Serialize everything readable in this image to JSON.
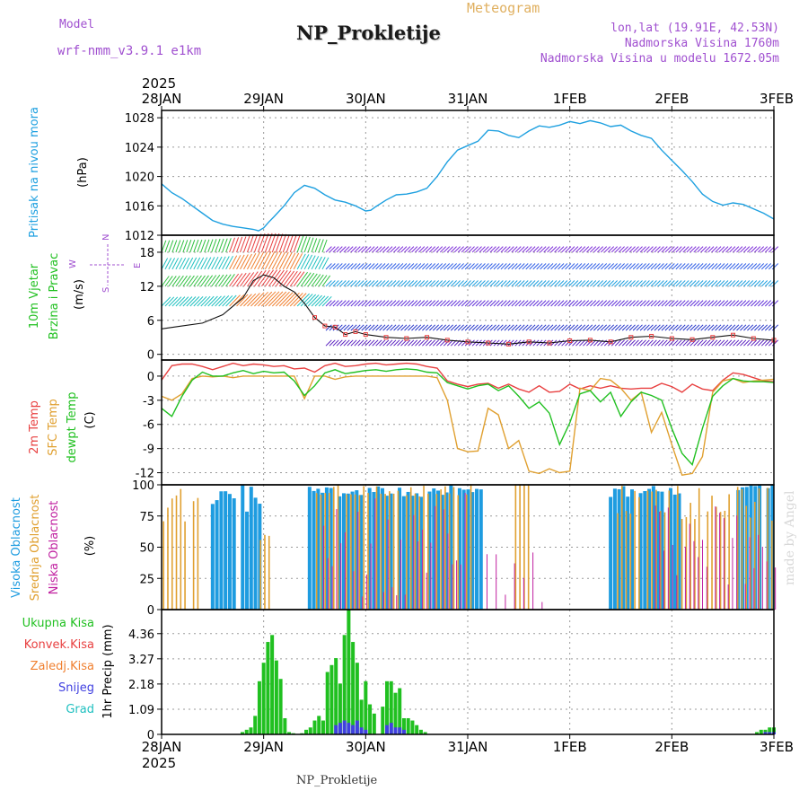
{
  "header": {
    "model_label": "Model",
    "model_name": "wrf-nmm_v3.9.1 e1km",
    "location": "NP_Prokletije",
    "meteogram_label": "Meteogram",
    "coords": "lon,lat (19.91E, 42.53N)",
    "altitude": "Nadmorska Visina 1760m",
    "model_altitude": "Nadmorska Visina u modelu 1672.05m",
    "footer_name": "NP_Prokletije",
    "credit": "made by Angel"
  },
  "colors": {
    "pressure": "#1ea0e0",
    "temp2m": "#e84040",
    "sfc_temp": "#e0a030",
    "dewpoint": "#20c020",
    "high_cloud": "#1e9ce0",
    "mid_cloud": "#e0a030",
    "low_cloud": "#c020a0",
    "total_precip": "#20c020",
    "conv_precip": "#e84040",
    "frozen": "#f08030",
    "snow": "#4040e0",
    "hail": "#20c0c0"
  },
  "chart_data": [
    {
      "type": "line",
      "panel": "pressure",
      "ylabel_side": "Pritisak na nivou mora",
      "unit": "(hPa)",
      "x_axis": {
        "start": "2025-01-28",
        "year_label": "2025",
        "ticks": [
          "28JAN",
          "29JAN",
          "30JAN",
          "31JAN",
          "1FEB",
          "2FEB",
          "3FEB"
        ]
      },
      "ylim": [
        1012,
        1029
      ],
      "yticks": [
        1012,
        1016,
        1020,
        1024,
        1028
      ],
      "grid": true,
      "series": [
        {
          "name": "Pritisak na nivou mora",
          "x_days": [
            0,
            0.1,
            0.2,
            0.3,
            0.4,
            0.5,
            0.6,
            0.7,
            0.8,
            0.9,
            0.95,
            1.0,
            1.05,
            1.1,
            1.2,
            1.3,
            1.4,
            1.5,
            1.6,
            1.7,
            1.8,
            1.9,
            2.0,
            2.05,
            2.1,
            2.2,
            2.3,
            2.4,
            2.5,
            2.6,
            2.7,
            2.8,
            2.9,
            3.0,
            3.1,
            3.2,
            3.3,
            3.4,
            3.5,
            3.6,
            3.7,
            3.8,
            3.9,
            4.0,
            4.1,
            4.2,
            4.3,
            4.4,
            4.5,
            4.6,
            4.7,
            4.8,
            4.9,
            5.0,
            5.1,
            5.2,
            5.3,
            5.4,
            5.5,
            5.6,
            5.7,
            5.8,
            5.9,
            6.0
          ],
          "values": [
            1019,
            1017.8,
            1017,
            1016,
            1015,
            1014,
            1013.5,
            1013.2,
            1013,
            1012.8,
            1012.6,
            1013,
            1013.8,
            1014.5,
            1016,
            1017.8,
            1018.8,
            1018.4,
            1017.5,
            1016.8,
            1016.5,
            1016,
            1015.3,
            1015.4,
            1015.9,
            1016.8,
            1017.5,
            1017.6,
            1017.9,
            1018.4,
            1020,
            1022,
            1023.6,
            1024.2,
            1024.8,
            1026.3,
            1026.2,
            1025.6,
            1025.3,
            1026.2,
            1026.9,
            1026.7,
            1027,
            1027.5,
            1027.2,
            1027.6,
            1027.3,
            1026.8,
            1027,
            1026.2,
            1025.6,
            1025.2,
            1023.6,
            1022.2,
            1020.8,
            1019.3,
            1017.6,
            1016.6,
            1016.1,
            1016.4,
            1016.2,
            1015.6,
            1015,
            1014.2
          ]
        }
      ]
    },
    {
      "type": "scatter",
      "panel": "wind",
      "ylabel_side": [
        "10m Vjetar",
        "Brzina i Pravac"
      ],
      "unit": "(m/s)",
      "direction_legend": [
        "N",
        "W",
        "E",
        "S"
      ],
      "ylim": [
        -1,
        21
      ],
      "yticks": [
        0,
        6,
        12,
        18
      ],
      "grid": true,
      "series": [
        {
          "name": "speed",
          "x_days": [
            0,
            0.2,
            0.4,
            0.6,
            0.8,
            0.9,
            1.0,
            1.1,
            1.2,
            1.3,
            1.4,
            1.5,
            1.6,
            1.7,
            1.8,
            1.9,
            2.0,
            2.2,
            2.4,
            2.6,
            2.8,
            3.0,
            3.2,
            3.4,
            3.6,
            3.8,
            4.0,
            4.2,
            4.4,
            4.6,
            4.8,
            5.0,
            5.2,
            5.4,
            5.6,
            5.8,
            6.0
          ],
          "values": [
            4.5,
            5,
            5.5,
            7,
            10,
            13,
            14,
            13.5,
            12,
            11,
            9,
            6.5,
            5,
            4.8,
            3.5,
            4,
            3.5,
            3,
            2.8,
            3,
            2.5,
            2.2,
            2,
            1.8,
            2.2,
            2,
            2.4,
            2.5,
            2.2,
            3,
            3.2,
            2.8,
            2.6,
            3,
            3.4,
            2.8,
            2.5
          ]
        }
      ],
      "barb_levels": [
        {
          "speed_range": "0-12 m/s",
          "direction": "mostly W/SW"
        },
        {
          "speed_range": "12-21 m/s",
          "direction": "mostly SW/W"
        }
      ]
    },
    {
      "type": "line",
      "panel": "temperature",
      "ylabel_side": [
        "2m Temp",
        "SFC Temp",
        "dewpt Temp"
      ],
      "unit": "(C)",
      "ylim": [
        -13.5,
        2
      ],
      "yticks": [
        0,
        -3,
        -6,
        -9,
        -12
      ],
      "grid": true,
      "series": [
        {
          "name": "2m Temp",
          "x_days": [
            0,
            0.1,
            0.2,
            0.3,
            0.4,
            0.5,
            0.6,
            0.7,
            0.8,
            0.9,
            1.0,
            1.1,
            1.2,
            1.3,
            1.4,
            1.5,
            1.6,
            1.7,
            1.8,
            1.9,
            2.0,
            2.1,
            2.2,
            2.3,
            2.4,
            2.5,
            2.6,
            2.7,
            2.8,
            2.9,
            3.0,
            3.1,
            3.2,
            3.3,
            3.4,
            3.5,
            3.6,
            3.7,
            3.8,
            3.9,
            4.0,
            4.1,
            4.2,
            4.3,
            4.4,
            4.5,
            4.6,
            4.7,
            4.8,
            4.9,
            5.0,
            5.1,
            5.2,
            5.3,
            5.4,
            5.5,
            5.6,
            5.7,
            5.8,
            5.9,
            6.0
          ],
          "values": [
            -0.5,
            1.3,
            1.5,
            1.5,
            1.2,
            0.8,
            1.2,
            1.6,
            1.3,
            1.5,
            1.4,
            1.2,
            1.3,
            0.9,
            1.0,
            0.5,
            1.3,
            1.6,
            1.2,
            1.3,
            1.5,
            1.6,
            1.4,
            1.5,
            1.6,
            1.5,
            1.2,
            1.0,
            -0.6,
            -1.0,
            -1.3,
            -1.0,
            -0.9,
            -1.5,
            -1.0,
            -1.6,
            -2.0,
            -1.2,
            -2.0,
            -1.9,
            -1.0,
            -1.6,
            -1.2,
            -1.5,
            -1.2,
            -1.5,
            -1.6,
            -1.5,
            -1.5,
            -0.9,
            -1.3,
            -2.0,
            -1.0,
            -1.6,
            -1.8,
            -0.5,
            0.4,
            0.2,
            -0.2,
            -0.6,
            -0.7
          ]
        },
        {
          "name": "SFC Temp",
          "x_days": [
            0,
            0.1,
            0.2,
            0.3,
            0.4,
            0.5,
            0.6,
            0.7,
            0.8,
            0.9,
            1.0,
            1.1,
            1.2,
            1.3,
            1.4,
            1.5,
            1.6,
            1.7,
            1.8,
            1.9,
            2.0,
            2.1,
            2.2,
            2.3,
            2.4,
            2.5,
            2.6,
            2.7,
            2.8,
            2.9,
            3.0,
            3.1,
            3.2,
            3.3,
            3.4,
            3.5,
            3.6,
            3.7,
            3.8,
            3.9,
            4.0,
            4.1,
            4.2,
            4.3,
            4.4,
            4.5,
            4.6,
            4.7,
            4.8,
            4.9,
            5.0,
            5.1,
            5.2,
            5.3,
            5.4,
            5.5,
            5.6,
            5.7,
            5.8,
            5.9,
            6.0
          ],
          "values": [
            -2.5,
            -3,
            -2.2,
            -0.3,
            0,
            -0.1,
            0,
            -0.2,
            0,
            0,
            0,
            0,
            0,
            0,
            -2.8,
            0,
            0,
            -0.4,
            -0.1,
            0,
            0,
            0,
            0,
            0,
            0,
            0,
            0,
            -0.2,
            -3,
            -9,
            -9.4,
            -9.3,
            -4,
            -4.8,
            -9,
            -8,
            -11.8,
            -12.1,
            -11.5,
            -12,
            -11.8,
            -1.5,
            -1.8,
            -0.3,
            -0.5,
            -1.5,
            -3,
            -2,
            -7,
            -4.5,
            -8.5,
            -12.3,
            -12.1,
            -10,
            -2,
            -0.6,
            -0.3,
            -0.8,
            -0.6,
            -0.5,
            -0.4
          ]
        },
        {
          "name": "dewpt Temp",
          "x_days": [
            0,
            0.1,
            0.2,
            0.3,
            0.4,
            0.5,
            0.6,
            0.7,
            0.8,
            0.9,
            1.0,
            1.1,
            1.2,
            1.3,
            1.4,
            1.5,
            1.6,
            1.7,
            1.8,
            1.9,
            2.0,
            2.1,
            2.2,
            2.3,
            2.4,
            2.5,
            2.6,
            2.7,
            2.8,
            2.9,
            3.0,
            3.1,
            3.2,
            3.3,
            3.4,
            3.5,
            3.6,
            3.7,
            3.8,
            3.9,
            4.0,
            4.1,
            4.2,
            4.3,
            4.4,
            4.5,
            4.6,
            4.7,
            4.8,
            4.9,
            5.0,
            5.1,
            5.2,
            5.3,
            5.4,
            5.5,
            5.6,
            5.7,
            5.8,
            5.9,
            6.0
          ],
          "values": [
            -4,
            -5,
            -2.5,
            -0.5,
            0.5,
            0,
            0,
            0.4,
            0.7,
            0.3,
            0.6,
            0.4,
            0.5,
            -0.6,
            -2.4,
            -1.2,
            0.4,
            0.8,
            0.3,
            0.5,
            0.7,
            0.8,
            0.6,
            0.8,
            0.9,
            0.8,
            0.5,
            0.4,
            -0.8,
            -1.2,
            -1.6,
            -1.2,
            -1.0,
            -1.8,
            -1.2,
            -2.5,
            -4.0,
            -3.2,
            -4.6,
            -8.5,
            -5.8,
            -2.2,
            -1.8,
            -3.2,
            -2.0,
            -5.0,
            -3.2,
            -2.0,
            -2.4,
            -3.0,
            -6.5,
            -9.6,
            -11.0,
            -6.5,
            -2.5,
            -1.2,
            -0.3,
            -0.6,
            -0.7,
            -0.7,
            -0.8
          ]
        }
      ]
    },
    {
      "type": "bar",
      "panel": "clouds",
      "ylabel_side": [
        "Visoka Oblacnost",
        "Srednja Oblacnost",
        "Niska Oblacnost"
      ],
      "unit": "(%)",
      "ylim": [
        0,
        100
      ],
      "yticks": [
        0,
        25,
        50,
        75,
        100
      ],
      "grid": true,
      "series": [
        {
          "name": "Visoka Oblacnost",
          "segments": [
            {
              "from_day": 0.5,
              "to_day": 1.0,
              "level": "78-100 intermittent"
            },
            {
              "from_day": 1.45,
              "to_day": 3.2,
              "level": "90-100 intermittent"
            },
            {
              "from_day": 4.4,
              "to_day": 5.1,
              "level": "90-100 intermittent"
            },
            {
              "from_day": 5.65,
              "to_day": 6.0,
              "level": "95-100 intermittent"
            }
          ]
        },
        {
          "name": "Srednja Oblacnost",
          "segments": [
            {
              "from_day": 0.0,
              "to_day": 0.35,
              "level": "65-100 intermittent"
            },
            {
              "from_day": 0.95,
              "to_day": 1.05,
              "level": "55-60"
            },
            {
              "from_day": 1.5,
              "to_day": 3.05,
              "level": "90-100 intermittent"
            },
            {
              "from_day": 3.45,
              "to_day": 3.6,
              "level": "100"
            },
            {
              "from_day": 4.45,
              "to_day": 6.0,
              "level": "70-100 intermittent"
            }
          ]
        },
        {
          "name": "Niska Oblacnost",
          "segments": [
            {
              "from_day": 1.55,
              "to_day": 3.0,
              "level": "10-95 intermittent"
            },
            {
              "from_day": 3.15,
              "to_day": 3.75,
              "level": "0-50 sparse"
            },
            {
              "from_day": 4.8,
              "to_day": 6.0,
              "level": "20-85 intermittent"
            }
          ]
        }
      ]
    },
    {
      "type": "bar",
      "panel": "precipitation",
      "ylabel_side": "1hr Precip (mm)",
      "legend": [
        "Ukupna Kisa",
        "Konvek.Kisa",
        "Zaledj.Kisa",
        "Snijeg",
        "Grad"
      ],
      "ylim": [
        0,
        5.4
      ],
      "yticks": [
        0,
        1.09,
        2.18,
        3.27,
        4.36
      ],
      "grid": true,
      "x_axis": {
        "ticks": [
          "28JAN",
          "29JAN",
          "30JAN",
          "31JAN",
          "1FEB",
          "2FEB",
          "3FEB"
        ],
        "year_label": "2025"
      },
      "series": [
        {
          "name": "Ukupna Kisa",
          "x_hours": [
            19,
            20,
            21,
            22,
            23,
            24,
            25,
            26,
            27,
            28,
            29,
            30,
            31,
            33,
            34,
            35,
            36,
            37,
            38,
            39,
            40,
            41,
            42,
            43,
            44,
            45,
            46,
            47,
            48,
            49,
            50,
            52,
            53,
            54,
            55,
            56,
            57,
            58,
            59,
            60,
            61,
            62,
            140,
            141,
            142,
            143,
            144
          ],
          "values": [
            0.1,
            0.2,
            0.3,
            0.8,
            2.3,
            3.1,
            4.0,
            4.3,
            3.2,
            2.4,
            0.7,
            0.1,
            0.05,
            0.05,
            0.2,
            0.3,
            0.6,
            0.8,
            0.6,
            2.7,
            3.0,
            3.3,
            2.2,
            4.3,
            5.4,
            4.0,
            3.1,
            1.5,
            2.3,
            1.3,
            0.9,
            1.2,
            2.3,
            2.3,
            1.8,
            2.0,
            0.7,
            0.7,
            0.6,
            0.4,
            0.2,
            0.1,
            0.1,
            0.2,
            0.2,
            0.3,
            0.3
          ]
        },
        {
          "name": "Snijeg",
          "x_hours": [
            41,
            42,
            43,
            44,
            45,
            46,
            47,
            48,
            53,
            54,
            55,
            56,
            57,
            142,
            143,
            144
          ],
          "values": [
            0.4,
            0.5,
            0.6,
            0.5,
            0.4,
            0.6,
            0.3,
            0.2,
            0.4,
            0.5,
            0.3,
            0.3,
            0.2,
            0.1,
            0.1,
            0.1
          ]
        }
      ]
    }
  ]
}
